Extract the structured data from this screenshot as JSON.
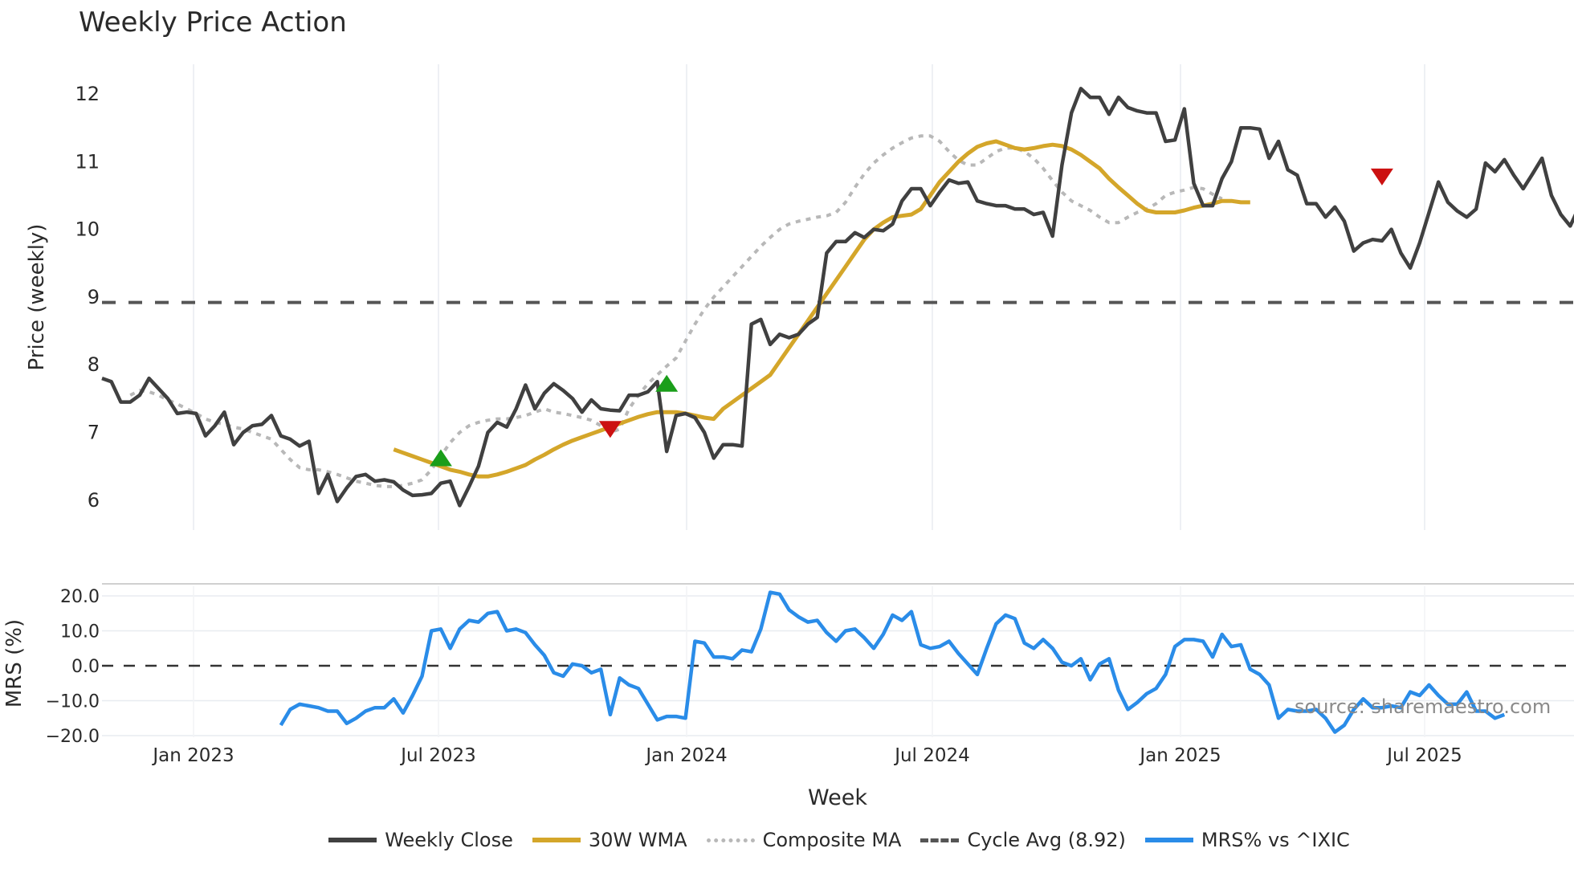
{
  "title": "Weekly Price Action",
  "source_label": "source: sharemaestro.com",
  "legend": [
    {
      "label": "Weekly Close",
      "key": "close"
    },
    {
      "label": "30W WMA",
      "key": "wma"
    },
    {
      "label": "Composite MA",
      "key": "comp"
    },
    {
      "label": "Cycle Avg (8.92)",
      "key": "cyc"
    },
    {
      "label": "MRS% vs ^IXIC",
      "key": "mrs"
    }
  ],
  "colors": {
    "close": "#404040",
    "wma": "#d4a62a",
    "composite": "#b8b8b8",
    "cycle": "#555555",
    "mrs": "#2a8ce8",
    "buy_marker": "#1a9e1a",
    "sell_marker": "#cc1111",
    "grid": "#e8ecf0"
  },
  "chart_data": [
    {
      "type": "line",
      "title": "Weekly Price Action",
      "xlabel": "",
      "ylabel": "Price (weekly)",
      "ylim": [
        5.6,
        12.4
      ],
      "yticks": [
        6,
        7,
        8,
        9,
        10,
        11,
        12
      ],
      "xticks": [
        "Jan 2023",
        "Jul 2023",
        "Jan 2024",
        "Jul 2024",
        "Jan 2025",
        "Jul 2025"
      ],
      "grid": true,
      "cycle_avg": 8.92,
      "series": [
        {
          "name": "Weekly Close",
          "start_week": 0,
          "values": [
            7.8,
            7.75,
            7.45,
            7.45,
            7.55,
            7.8,
            7.65,
            7.5,
            7.28,
            7.3,
            7.28,
            6.95,
            7.1,
            7.3,
            6.82,
            7.0,
            7.1,
            7.12,
            7.25,
            6.95,
            6.9,
            6.8,
            6.87,
            6.1,
            6.38,
            5.98,
            6.18,
            6.35,
            6.38,
            6.28,
            6.3,
            6.27,
            6.15,
            6.07,
            6.08,
            6.1,
            6.25,
            6.28,
            5.92,
            6.2,
            6.5,
            7.0,
            7.15,
            7.08,
            7.35,
            7.7,
            7.35,
            7.58,
            7.72,
            7.62,
            7.5,
            7.3,
            7.48,
            7.35,
            7.33,
            7.32,
            7.55,
            7.55,
            7.6,
            7.75,
            6.72,
            7.25,
            7.28,
            7.22,
            7.0,
            6.62,
            6.82,
            6.82,
            6.8,
            8.6,
            8.67,
            8.3,
            8.45,
            8.4,
            8.45,
            8.6,
            8.7,
            9.65,
            9.82,
            9.82,
            9.95,
            9.88,
            10.0,
            9.98,
            10.08,
            10.42,
            10.6,
            10.6,
            10.35,
            10.55,
            10.73,
            10.68,
            10.7,
            10.42,
            10.38,
            10.35,
            10.35,
            10.3,
            10.3,
            10.22,
            10.25,
            9.9,
            10.95,
            11.72,
            12.08,
            11.95,
            11.95,
            11.7,
            11.95,
            11.8,
            11.75,
            11.72,
            11.72,
            11.3,
            11.32,
            11.78,
            10.68,
            10.35,
            10.35,
            10.75,
            11.0,
            11.5,
            11.5,
            11.48,
            11.05,
            11.3,
            10.88,
            10.8,
            10.38,
            10.38,
            10.18,
            10.33,
            10.12,
            9.68,
            9.8,
            9.85,
            9.83,
            10.0,
            9.65,
            9.43,
            9.8,
            10.25,
            10.7,
            10.4,
            10.27,
            10.18,
            10.3,
            10.98,
            10.85,
            11.03,
            10.8,
            10.6,
            10.82,
            11.05,
            10.5,
            10.22,
            10.05,
            10.35
          ]
        },
        {
          "name": "30W WMA",
          "start_week": 23,
          "values": [
            null,
            null,
            null,
            null,
            null,
            null,
            null,
            null,
            6.75,
            6.7,
            6.65,
            6.6,
            6.55,
            6.5,
            6.45,
            6.42,
            6.38,
            6.35,
            6.35,
            6.38,
            6.42,
            6.47,
            6.52,
            6.6,
            6.67,
            6.75,
            6.82,
            6.88,
            6.93,
            6.98,
            7.03,
            7.08,
            7.13,
            7.18,
            7.23,
            7.27,
            7.3,
            7.3,
            7.3,
            7.28,
            7.25,
            7.22,
            7.2,
            7.35,
            7.45,
            7.55,
            7.65,
            7.75,
            7.85,
            8.05,
            8.25,
            8.45,
            8.65,
            8.85,
            9.05,
            9.25,
            9.45,
            9.65,
            9.85,
            10.0,
            10.1,
            10.18,
            10.2,
            10.22,
            10.3,
            10.5,
            10.7,
            10.85,
            11.0,
            11.12,
            11.22,
            11.27,
            11.3,
            11.25,
            11.2,
            11.18,
            11.2,
            11.23,
            11.25,
            11.23,
            11.18,
            11.1,
            11.0,
            10.9,
            10.75,
            10.62,
            10.5,
            10.38,
            10.28,
            10.25,
            10.25,
            10.25,
            10.28,
            10.32,
            10.35,
            10.38,
            10.42,
            10.42,
            10.4,
            10.4
          ]
        },
        {
          "name": "Composite MA",
          "start_week": 3,
          "values": [
            7.55,
            7.62,
            7.6,
            7.55,
            7.48,
            7.42,
            7.35,
            7.28,
            7.2,
            7.15,
            7.12,
            7.08,
            7.05,
            7.0,
            6.95,
            6.9,
            6.75,
            6.6,
            6.48,
            6.45,
            6.45,
            6.42,
            6.38,
            6.33,
            6.28,
            6.25,
            6.22,
            6.2,
            6.2,
            6.22,
            6.25,
            6.3,
            6.45,
            6.65,
            6.85,
            7.0,
            7.1,
            7.15,
            7.18,
            7.2,
            7.2,
            7.22,
            7.25,
            7.3,
            7.35,
            7.3,
            7.28,
            7.25,
            7.22,
            7.18,
            7.1,
            7.0,
            7.05,
            7.35,
            7.55,
            7.72,
            7.85,
            7.98,
            8.1,
            8.35,
            8.6,
            8.82,
            9.0,
            9.15,
            9.3,
            9.45,
            9.6,
            9.75,
            9.88,
            10.0,
            10.08,
            10.12,
            10.15,
            10.18,
            10.2,
            10.25,
            10.4,
            10.62,
            10.82,
            10.98,
            11.1,
            11.2,
            11.28,
            11.35,
            11.38,
            11.38,
            11.3,
            11.15,
            11.02,
            10.95,
            10.95,
            11.05,
            11.15,
            11.2,
            11.2,
            11.15,
            11.05,
            10.9,
            10.72,
            10.55,
            10.42,
            10.35,
            10.28,
            10.18,
            10.1,
            10.1,
            10.18,
            10.25,
            10.3,
            10.38,
            10.5,
            10.55,
            10.58,
            10.62,
            10.6,
            10.52,
            10.45
          ]
        }
      ],
      "markers": [
        {
          "type": "buy",
          "week": 36,
          "value": 6.62
        },
        {
          "type": "sell",
          "week": 54,
          "value": 7.05
        },
        {
          "type": "buy",
          "week": 60,
          "value": 7.72
        },
        {
          "type": "sell",
          "week": 136,
          "value": 10.78
        }
      ]
    },
    {
      "type": "line",
      "title": "",
      "xlabel": "Week",
      "ylabel": "MRS (%)",
      "ylim": [
        -22,
        24
      ],
      "yticks": [
        -20.0,
        -10.0,
        0.0,
        10.0,
        20.0
      ],
      "ytick_labels": [
        "−20.0",
        "−10.0",
        "0.0",
        "10.0",
        "20.0"
      ],
      "xticks": [
        "Jan 2023",
        "Jul 2023",
        "Jan 2024",
        "Jul 2024",
        "Jan 2025",
        "Jul 2025"
      ],
      "grid": true,
      "zero_line": 0,
      "series": [
        {
          "name": "MRS% vs ^IXIC",
          "start_week": 19,
          "values": [
            -17,
            -12.5,
            -11,
            -11.5,
            -12,
            -13,
            -13,
            -16.5,
            -15,
            -13,
            -12,
            -12,
            -9.5,
            -13.5,
            -8.5,
            -3,
            10,
            10.5,
            5,
            10.5,
            13,
            12.5,
            15,
            15.5,
            10,
            10.5,
            9.5,
            6,
            3,
            -2,
            -3,
            0.5,
            0,
            -2,
            -1,
            -14,
            -3.5,
            -5.5,
            -6.5,
            -11,
            -15.5,
            -14.5,
            -14.5,
            -15,
            7,
            6.5,
            2.5,
            2.5,
            2,
            4.5,
            4,
            10.5,
            21,
            20.5,
            16,
            14,
            12.5,
            13,
            9.5,
            7,
            10,
            10.5,
            8,
            5,
            9,
            14.5,
            13,
            15.5,
            6,
            5,
            5.5,
            7,
            3.5,
            0.5,
            -2.5,
            5,
            12,
            14.5,
            13.5,
            6.5,
            5,
            7.5,
            5,
            1,
            0,
            2,
            -4,
            0.5,
            2,
            -7,
            -12.5,
            -10.5,
            -8,
            -6.5,
            -2.5,
            5.5,
            7.5,
            7.5,
            7,
            2.5,
            9,
            5.5,
            6,
            -1,
            -2.5,
            -5.5,
            -15,
            -12.5,
            -13,
            -13,
            -12.5,
            -15,
            -19,
            -17,
            -12.5,
            -9.5,
            -12,
            -12,
            -11.5,
            -12,
            -7.5,
            -8.5,
            -5.5,
            -8.5,
            -11,
            -11,
            -7.5,
            -13,
            -13,
            -15,
            -14
          ]
        }
      ]
    }
  ],
  "axes": {
    "price_ylabel": "Price (weekly)",
    "mrs_ylabel": "MRS (%)",
    "xlabel": "Week"
  }
}
